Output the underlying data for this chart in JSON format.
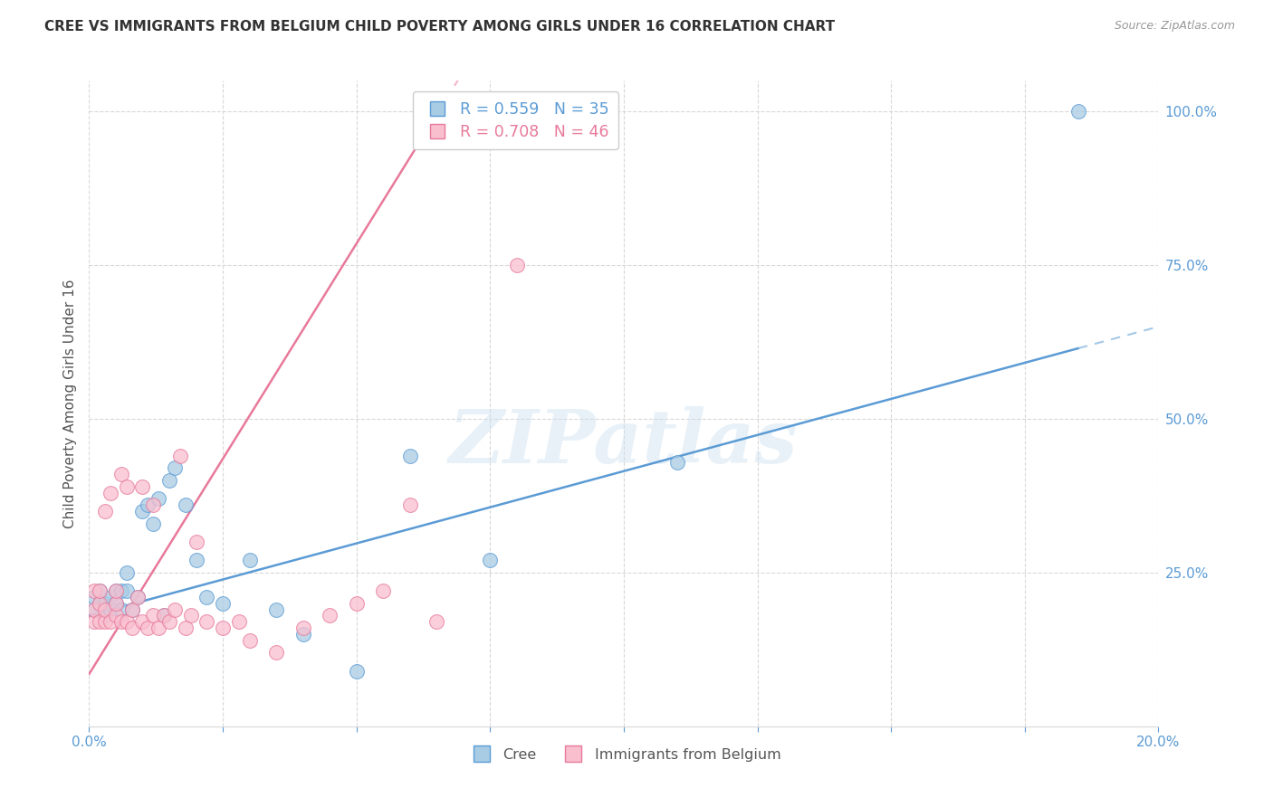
{
  "title": "CREE VS IMMIGRANTS FROM BELGIUM CHILD POVERTY AMONG GIRLS UNDER 16 CORRELATION CHART",
  "source": "Source: ZipAtlas.com",
  "ylabel": "Child Poverty Among Girls Under 16",
  "xmin": 0.0,
  "xmax": 0.2,
  "ymin": 0.0,
  "ymax": 1.05,
  "right_yticks": [
    0.25,
    0.5,
    0.75,
    1.0
  ],
  "right_yticklabels": [
    "25.0%",
    "50.0%",
    "75.0%",
    "100.0%"
  ],
  "series": [
    {
      "name": "Cree",
      "R": 0.559,
      "N": 35,
      "color": "#a8cce4",
      "marker_edge": "#5b9bd5",
      "x": [
        0.001,
        0.001,
        0.002,
        0.002,
        0.003,
        0.003,
        0.004,
        0.004,
        0.005,
        0.005,
        0.006,
        0.006,
        0.007,
        0.007,
        0.008,
        0.009,
        0.01,
        0.011,
        0.012,
        0.013,
        0.014,
        0.015,
        0.016,
        0.018,
        0.02,
        0.022,
        0.025,
        0.03,
        0.035,
        0.04,
        0.05,
        0.06,
        0.075,
        0.11,
        0.185
      ],
      "y": [
        0.19,
        0.21,
        0.2,
        0.22,
        0.18,
        0.2,
        0.19,
        0.21,
        0.2,
        0.22,
        0.19,
        0.22,
        0.25,
        0.22,
        0.19,
        0.21,
        0.35,
        0.36,
        0.33,
        0.37,
        0.18,
        0.4,
        0.42,
        0.36,
        0.27,
        0.21,
        0.2,
        0.27,
        0.19,
        0.15,
        0.09,
        0.44,
        0.27,
        0.43,
        1.0
      ],
      "trend_solid_end": 0.185,
      "trend_dash_end": 0.2,
      "trend_slope": 2.35,
      "trend_intercept": 0.18
    },
    {
      "name": "Immigrants from Belgium",
      "R": 0.708,
      "N": 46,
      "color": "#f9bfcf",
      "marker_edge": "#e8799a",
      "x": [
        0.001,
        0.001,
        0.001,
        0.002,
        0.002,
        0.002,
        0.003,
        0.003,
        0.003,
        0.004,
        0.004,
        0.005,
        0.005,
        0.005,
        0.006,
        0.006,
        0.007,
        0.007,
        0.008,
        0.008,
        0.009,
        0.01,
        0.01,
        0.011,
        0.012,
        0.012,
        0.013,
        0.014,
        0.015,
        0.016,
        0.017,
        0.018,
        0.019,
        0.02,
        0.022,
        0.025,
        0.028,
        0.03,
        0.035,
        0.04,
        0.045,
        0.05,
        0.055,
        0.06,
        0.065,
        0.08
      ],
      "y": [
        0.17,
        0.19,
        0.22,
        0.17,
        0.2,
        0.22,
        0.17,
        0.19,
        0.35,
        0.17,
        0.38,
        0.18,
        0.2,
        0.22,
        0.17,
        0.41,
        0.17,
        0.39,
        0.16,
        0.19,
        0.21,
        0.17,
        0.39,
        0.16,
        0.18,
        0.36,
        0.16,
        0.18,
        0.17,
        0.19,
        0.44,
        0.16,
        0.18,
        0.3,
        0.17,
        0.16,
        0.17,
        0.14,
        0.12,
        0.16,
        0.18,
        0.2,
        0.22,
        0.36,
        0.17,
        0.75
      ],
      "trend_solid_end": 0.065,
      "trend_dash_end": 0.2,
      "trend_slope": 14.0,
      "trend_intercept": 0.085
    }
  ],
  "watermark": "ZIPatlas",
  "bg_color": "#ffffff",
  "grid_color": "#d8d8d8",
  "title_color": "#333333",
  "axis_color": "#5b9bd5",
  "tick_color": "#5b9bd5"
}
